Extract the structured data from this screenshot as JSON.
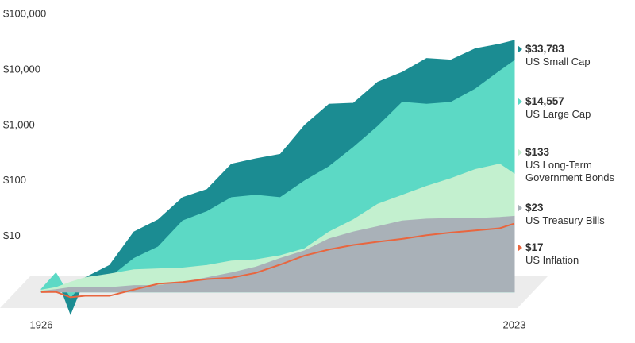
{
  "chart_data": {
    "type": "area",
    "log_scale": true,
    "xlim": [
      1926,
      2023
    ],
    "xticks": [
      1926,
      2023
    ],
    "ylim": [
      0.12,
      100000
    ],
    "yticks": [
      {
        "value": 10,
        "label": "$10"
      },
      {
        "value": 100,
        "label": "$100"
      },
      {
        "value": 1000,
        "label": "$1,000"
      },
      {
        "value": 10000,
        "label": "$10,000"
      },
      {
        "value": 100000,
        "label": "$100,000"
      }
    ],
    "x": [
      1926,
      1929,
      1932,
      1935,
      1940,
      1945,
      1950,
      1955,
      1960,
      1965,
      1970,
      1975,
      1980,
      1985,
      1990,
      1995,
      2000,
      2005,
      2010,
      2015,
      2020,
      2023
    ],
    "series": [
      {
        "name": "US Small Cap",
        "color": "#1b8c92",
        "values": [
          1,
          2,
          0.4,
          1.8,
          3,
          12,
          20,
          50,
          70,
          200,
          250,
          300,
          1000,
          2400,
          2500,
          6000,
          9000,
          16000,
          15000,
          24000,
          29000,
          33783
        ],
        "value_labels": [
          null,
          null,
          null,
          null,
          null,
          null,
          null,
          null,
          null,
          null,
          null,
          null,
          null,
          null,
          null,
          null,
          null,
          null,
          null,
          null,
          null,
          "$33,783"
        ]
      },
      {
        "name": "US Large Cap",
        "color": "#5cd9c5",
        "values": [
          1.12,
          2.2,
          0.8,
          1.6,
          1.8,
          4,
          6.5,
          19,
          28,
          50,
          55,
          50,
          100,
          180,
          400,
          960,
          2600,
          2400,
          2600,
          4500,
          9500,
          14557
        ],
        "value_labels": [
          null,
          null,
          null,
          null,
          null,
          null,
          null,
          null,
          null,
          null,
          null,
          null,
          null,
          null,
          null,
          null,
          null,
          null,
          null,
          null,
          null,
          "$14,557"
        ]
      },
      {
        "name": "US Long-Term Government Bonds",
        "color": "#c3f0cf",
        "values": [
          1.08,
          1.2,
          1.5,
          1.8,
          2.1,
          2.5,
          2.6,
          2.7,
          3,
          3.6,
          3.8,
          4.5,
          6,
          12,
          20,
          38,
          55,
          80,
          110,
          160,
          200,
          133
        ],
        "value_labels": [
          null,
          null,
          null,
          null,
          null,
          null,
          null,
          null,
          null,
          null,
          null,
          null,
          null,
          null,
          null,
          null,
          null,
          null,
          null,
          null,
          null,
          "$133"
        ]
      },
      {
        "name": "US Treasury Bills",
        "color": "#a9b1b8",
        "values": [
          1.03,
          1.1,
          1.2,
          1.2,
          1.2,
          1.3,
          1.3,
          1.5,
          1.8,
          2.2,
          2.8,
          4,
          5.5,
          9,
          12,
          15,
          19,
          20.5,
          21,
          21,
          22,
          23
        ],
        "value_labels": [
          null,
          null,
          null,
          null,
          null,
          null,
          null,
          null,
          null,
          null,
          null,
          null,
          null,
          null,
          null,
          null,
          null,
          null,
          null,
          null,
          null,
          "$23"
        ]
      },
      {
        "name": "US Inflation",
        "color": "#e8663f",
        "line": true,
        "values": [
          0.99,
          1.0,
          0.8,
          0.85,
          0.85,
          1.1,
          1.4,
          1.5,
          1.7,
          1.8,
          2.2,
          3.1,
          4.5,
          5.8,
          7,
          8,
          9,
          10.5,
          11.7,
          12.8,
          14,
          17
        ],
        "value_labels": [
          null,
          null,
          null,
          null,
          null,
          null,
          null,
          null,
          null,
          null,
          null,
          null,
          null,
          null,
          null,
          null,
          null,
          null,
          null,
          null,
          null,
          "$17"
        ]
      }
    ]
  }
}
